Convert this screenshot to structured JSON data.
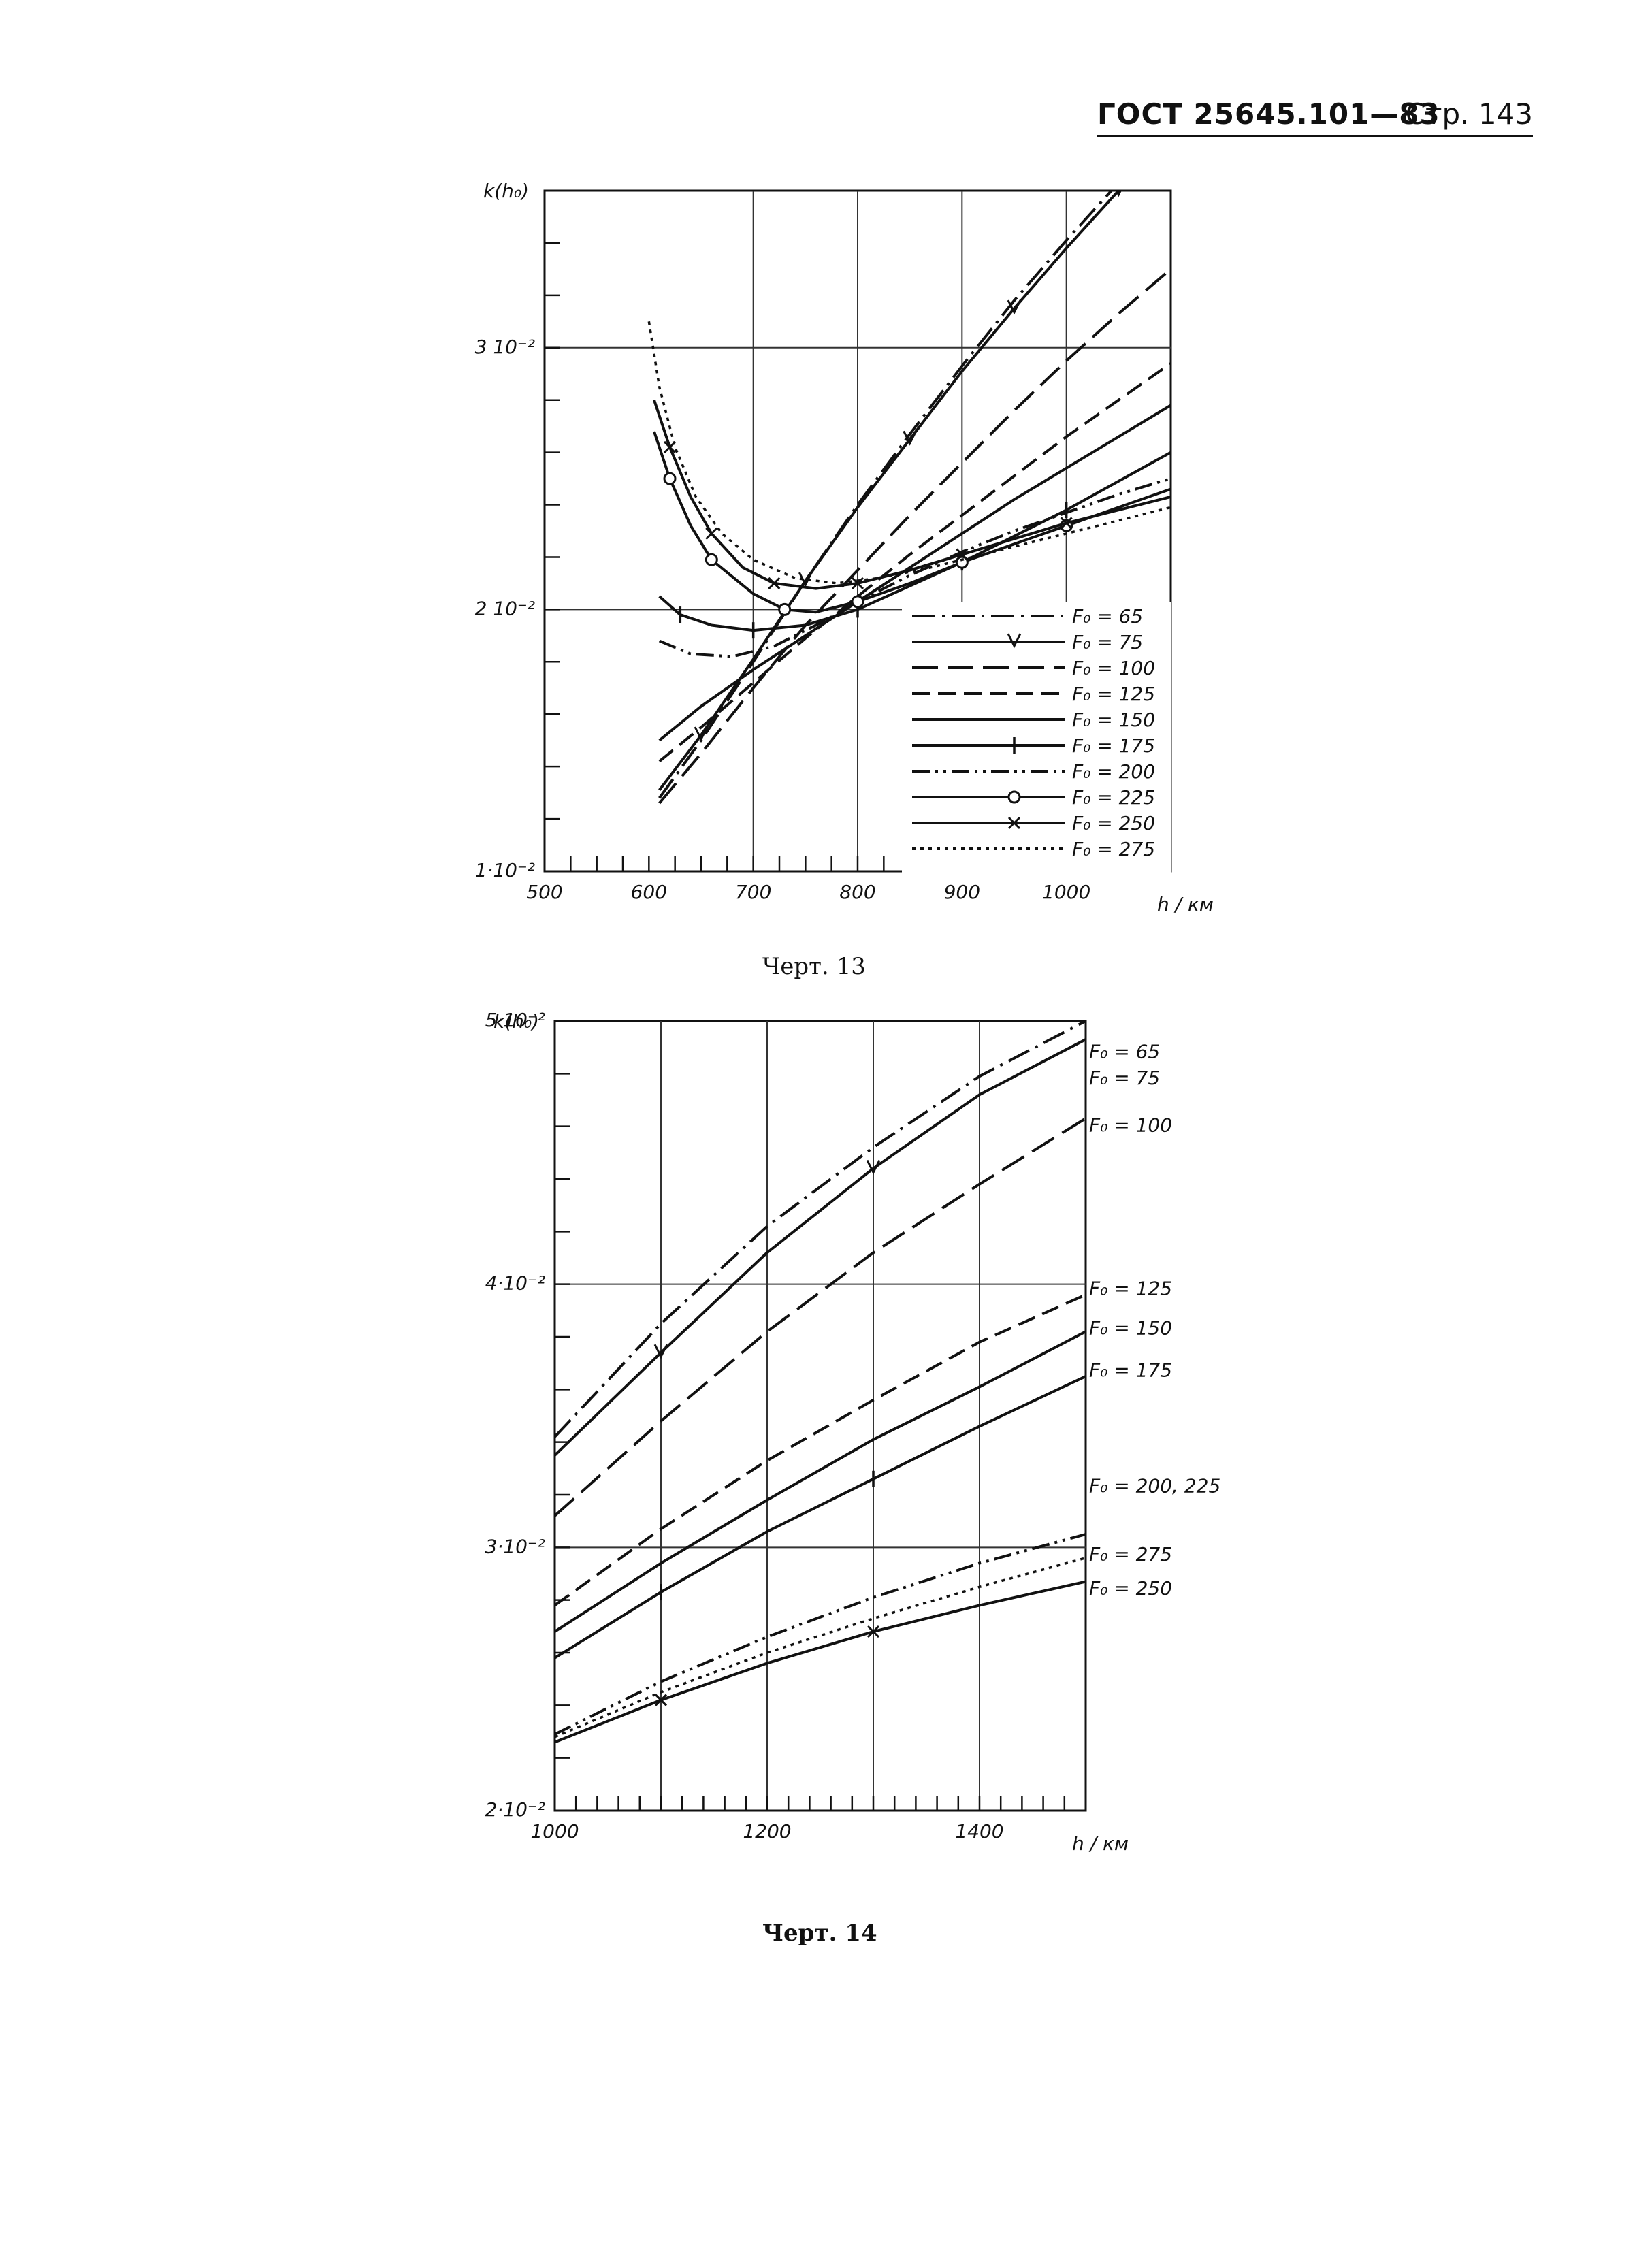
{
  "header": {
    "standard": "ГОСТ 25645.101—83",
    "page_label": "Стр. 143"
  },
  "captions": [
    "Черт. 13",
    "Черт. 14"
  ],
  "chart_data": [
    {
      "type": "line",
      "caption": "Черт. 13",
      "ylabel": "k(h₀)",
      "xlabel": "h / км",
      "xlim": [
        500,
        1100
      ],
      "ylim": [
        0.01,
        0.036
      ],
      "x_ticks": [
        "500",
        "600",
        "700",
        "800",
        "900",
        "1000"
      ],
      "y_ticks": [
        "1·10⁻²",
        "2 10⁻²",
        "3 10⁻²"
      ],
      "legend_position": "lower-right",
      "grid": true,
      "series": [
        {
          "name": "F₀ = 65",
          "style": "dash-dot",
          "marker": "",
          "points": [
            [
              610,
              0.0128
            ],
            [
              650,
              0.015
            ],
            [
              700,
              0.018
            ],
            [
              750,
              0.0211
            ],
            [
              800,
              0.024
            ],
            [
              850,
              0.0267
            ],
            [
              900,
              0.0293
            ],
            [
              950,
              0.0318
            ],
            [
              1000,
              0.0341
            ],
            [
              1050,
              0.0363
            ],
            [
              1100,
              0.0385
            ]
          ]
        },
        {
          "name": "F₀ = 75",
          "style": "solid",
          "marker": "v",
          "points": [
            [
              610,
              0.0131
            ],
            [
              650,
              0.0152
            ],
            [
              700,
              0.0181
            ],
            [
              750,
              0.0211
            ],
            [
              800,
              0.0239
            ],
            [
              850,
              0.0265
            ],
            [
              900,
              0.0291
            ],
            [
              950,
              0.0315
            ],
            [
              1000,
              0.0338
            ],
            [
              1050,
              0.036
            ],
            [
              1100,
              0.0381
            ]
          ]
        },
        {
          "name": "F₀ = 100",
          "style": "long-dash",
          "marker": "",
          "points": [
            [
              610,
              0.0126
            ],
            [
              650,
              0.0145
            ],
            [
              700,
              0.017
            ],
            [
              750,
              0.0194
            ],
            [
              800,
              0.0215
            ],
            [
              850,
              0.0236
            ],
            [
              900,
              0.0256
            ],
            [
              950,
              0.0276
            ],
            [
              1000,
              0.0295
            ],
            [
              1050,
              0.0313
            ],
            [
              1100,
              0.033
            ]
          ]
        },
        {
          "name": "F₀ = 125",
          "style": "dash",
          "marker": "",
          "points": [
            [
              610,
              0.0142
            ],
            [
              650,
              0.0155
            ],
            [
              700,
              0.0172
            ],
            [
              750,
              0.0189
            ],
            [
              800,
              0.0205
            ],
            [
              850,
              0.0221
            ],
            [
              900,
              0.0236
            ],
            [
              950,
              0.0251
            ],
            [
              1000,
              0.0266
            ],
            [
              1050,
              0.028
            ],
            [
              1100,
              0.0294
            ]
          ]
        },
        {
          "name": "F₀ = 150",
          "style": "solid",
          "marker": "",
          "points": [
            [
              610,
              0.015
            ],
            [
              650,
              0.0163
            ],
            [
              700,
              0.0177
            ],
            [
              750,
              0.019
            ],
            [
              800,
              0.0203
            ],
            [
              850,
              0.0216
            ],
            [
              900,
              0.0229
            ],
            [
              950,
              0.0242
            ],
            [
              1000,
              0.0254
            ],
            [
              1050,
              0.0266
            ],
            [
              1100,
              0.0278
            ]
          ]
        },
        {
          "name": "F₀ = 175",
          "style": "solid",
          "marker": "|",
          "points": [
            [
              610,
              0.0205
            ],
            [
              630,
              0.0198
            ],
            [
              660,
              0.0194
            ],
            [
              700,
              0.0192
            ],
            [
              750,
              0.0194
            ],
            [
              800,
              0.02
            ],
            [
              850,
              0.0209
            ],
            [
              900,
              0.0218
            ],
            [
              950,
              0.0228
            ],
            [
              1000,
              0.0238
            ],
            [
              1050,
              0.0249
            ],
            [
              1100,
              0.026
            ]
          ]
        },
        {
          "name": "F₀ = 200",
          "style": "dash-dot-dot",
          "marker": "",
          "points": [
            [
              610,
              0.0188
            ],
            [
              640,
              0.0183
            ],
            [
              680,
              0.0182
            ],
            [
              720,
              0.0186
            ],
            [
              770,
              0.0196
            ],
            [
              800,
              0.0203
            ],
            [
              850,
              0.0213
            ],
            [
              900,
              0.0222
            ],
            [
              950,
              0.023
            ],
            [
              1000,
              0.0237
            ],
            [
              1050,
              0.0244
            ],
            [
              1100,
              0.025
            ]
          ]
        },
        {
          "name": "F₀ = 225",
          "style": "solid",
          "marker": "o",
          "points": [
            [
              605,
              0.0268
            ],
            [
              620,
              0.025
            ],
            [
              640,
              0.0232
            ],
            [
              660,
              0.0219
            ],
            [
              700,
              0.0206
            ],
            [
              730,
              0.02
            ],
            [
              760,
              0.0199
            ],
            [
              800,
              0.0203
            ],
            [
              850,
              0.021
            ],
            [
              900,
              0.0218
            ],
            [
              950,
              0.0225
            ],
            [
              1000,
              0.0232
            ],
            [
              1050,
              0.0239
            ],
            [
              1100,
              0.0246
            ]
          ]
        },
        {
          "name": "F₀ = 250",
          "style": "solid",
          "marker": "x",
          "points": [
            [
              605,
              0.028
            ],
            [
              620,
              0.0262
            ],
            [
              640,
              0.0243
            ],
            [
              660,
              0.0229
            ],
            [
              690,
              0.0216
            ],
            [
              720,
              0.021
            ],
            [
              760,
              0.0208
            ],
            [
              800,
              0.021
            ],
            [
              850,
              0.0215
            ],
            [
              900,
              0.0221
            ],
            [
              950,
              0.0227
            ],
            [
              1000,
              0.0233
            ],
            [
              1050,
              0.0238
            ],
            [
              1100,
              0.0243
            ]
          ]
        },
        {
          "name": "F₀ = 275",
          "style": "dotted",
          "marker": "",
          "points": [
            [
              600,
              0.031
            ],
            [
              610,
              0.0285
            ],
            [
              625,
              0.0262
            ],
            [
              645,
              0.0243
            ],
            [
              670,
              0.0229
            ],
            [
              700,
              0.0219
            ],
            [
              740,
              0.0212
            ],
            [
              780,
              0.021
            ],
            [
              820,
              0.0212
            ],
            [
              870,
              0.0216
            ],
            [
              920,
              0.0221
            ],
            [
              970,
              0.0226
            ],
            [
              1020,
              0.0231
            ],
            [
              1070,
              0.0236
            ],
            [
              1100,
              0.0239
            ]
          ]
        }
      ]
    },
    {
      "type": "line",
      "caption": "Черт. 14",
      "ylabel": "k(h₀)",
      "xlabel": "h / км",
      "xlim": [
        1000,
        1500
      ],
      "ylim": [
        0.02,
        0.05
      ],
      "x_ticks": [
        "1000",
        "1200",
        "1400"
      ],
      "y_ticks": [
        "2·10⁻²",
        "3·10⁻²",
        "4·10⁻²",
        "5·10⁻²"
      ],
      "legend_position": "right",
      "grid": true,
      "series": [
        {
          "name": "F₀ = 65",
          "style": "dash-dot",
          "marker": "",
          "points": [
            [
              1000,
              0.0342
            ],
            [
              1100,
              0.0385
            ],
            [
              1200,
              0.0422
            ],
            [
              1300,
              0.0452
            ],
            [
              1400,
              0.0479
            ],
            [
              1500,
              0.05
            ]
          ]
        },
        {
          "name": "F₀ = 75",
          "style": "solid",
          "marker": "v",
          "points": [
            [
              1000,
              0.0335
            ],
            [
              1100,
              0.0374
            ],
            [
              1200,
              0.0412
            ],
            [
              1300,
              0.0444
            ],
            [
              1400,
              0.0472
            ],
            [
              1500,
              0.0493
            ]
          ]
        },
        {
          "name": "F₀ = 100",
          "style": "long-dash",
          "marker": "",
          "points": [
            [
              1000,
              0.0312
            ],
            [
              1100,
              0.0348
            ],
            [
              1200,
              0.0382
            ],
            [
              1300,
              0.0412
            ],
            [
              1400,
              0.0438
            ],
            [
              1500,
              0.0463
            ]
          ]
        },
        {
          "name": "F₀ = 125",
          "style": "dash",
          "marker": "",
          "points": [
            [
              1000,
              0.0278
            ],
            [
              1100,
              0.0307
            ],
            [
              1200,
              0.0333
            ],
            [
              1300,
              0.0356
            ],
            [
              1400,
              0.0378
            ],
            [
              1500,
              0.0396
            ]
          ]
        },
        {
          "name": "F₀ = 150",
          "style": "solid",
          "marker": "",
          "points": [
            [
              1000,
              0.0268
            ],
            [
              1100,
              0.0294
            ],
            [
              1200,
              0.0318
            ],
            [
              1300,
              0.0341
            ],
            [
              1400,
              0.0361
            ],
            [
              1500,
              0.0382
            ]
          ]
        },
        {
          "name": "F₀ = 175",
          "style": "solid",
          "marker": "|",
          "points": [
            [
              1000,
              0.0258
            ],
            [
              1100,
              0.0283
            ],
            [
              1200,
              0.0306
            ],
            [
              1300,
              0.0326
            ],
            [
              1400,
              0.0346
            ],
            [
              1500,
              0.0365
            ]
          ]
        },
        {
          "name": "F₀ = 200, 225",
          "style": "dash-dot-dot",
          "marker": "",
          "points": [
            [
              1000,
              0.0229
            ],
            [
              1100,
              0.0249
            ],
            [
              1200,
              0.0266
            ],
            [
              1300,
              0.0281
            ],
            [
              1400,
              0.0294
            ],
            [
              1500,
              0.0305
            ]
          ]
        },
        {
          "name": "F₀ = 275",
          "style": "dotted",
          "marker": "",
          "points": [
            [
              1000,
              0.0228
            ],
            [
              1100,
              0.0245
            ],
            [
              1200,
              0.026
            ],
            [
              1300,
              0.0273
            ],
            [
              1400,
              0.0285
            ],
            [
              1500,
              0.0296
            ]
          ]
        },
        {
          "name": "F₀ = 250",
          "style": "solid",
          "marker": "x",
          "points": [
            [
              1000,
              0.0226
            ],
            [
              1100,
              0.0242
            ],
            [
              1200,
              0.0256
            ],
            [
              1300,
              0.0268
            ],
            [
              1400,
              0.0278
            ],
            [
              1500,
              0.0287
            ]
          ]
        }
      ]
    }
  ]
}
